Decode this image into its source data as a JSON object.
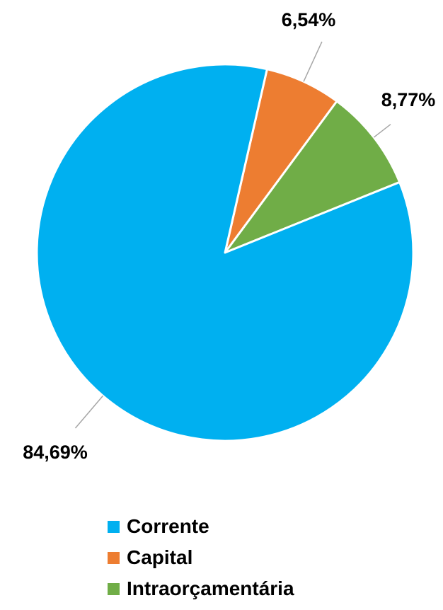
{
  "chart_data": {
    "type": "pie",
    "title": "",
    "categories": [
      "Corrente",
      "Capital",
      "Intraorçamentária"
    ],
    "values": [
      84.69,
      6.54,
      8.77
    ],
    "labels": [
      "84,69%",
      "6,54%",
      "8,77%"
    ],
    "colors": [
      "#00B0F0",
      "#ED7D31",
      "#70AD47"
    ],
    "legend_position": "bottom",
    "start_angle_deg": 12.9,
    "direction": "clockwise",
    "slice_order": [
      "Capital",
      "Intraorçamentária",
      "Corrente"
    ]
  },
  "legend": {
    "items": [
      {
        "label": "Corrente",
        "color": "#00B0F0"
      },
      {
        "label": "Capital",
        "color": "#ED7D31"
      },
      {
        "label": "Intraorçamentária",
        "color": "#70AD47"
      }
    ]
  }
}
